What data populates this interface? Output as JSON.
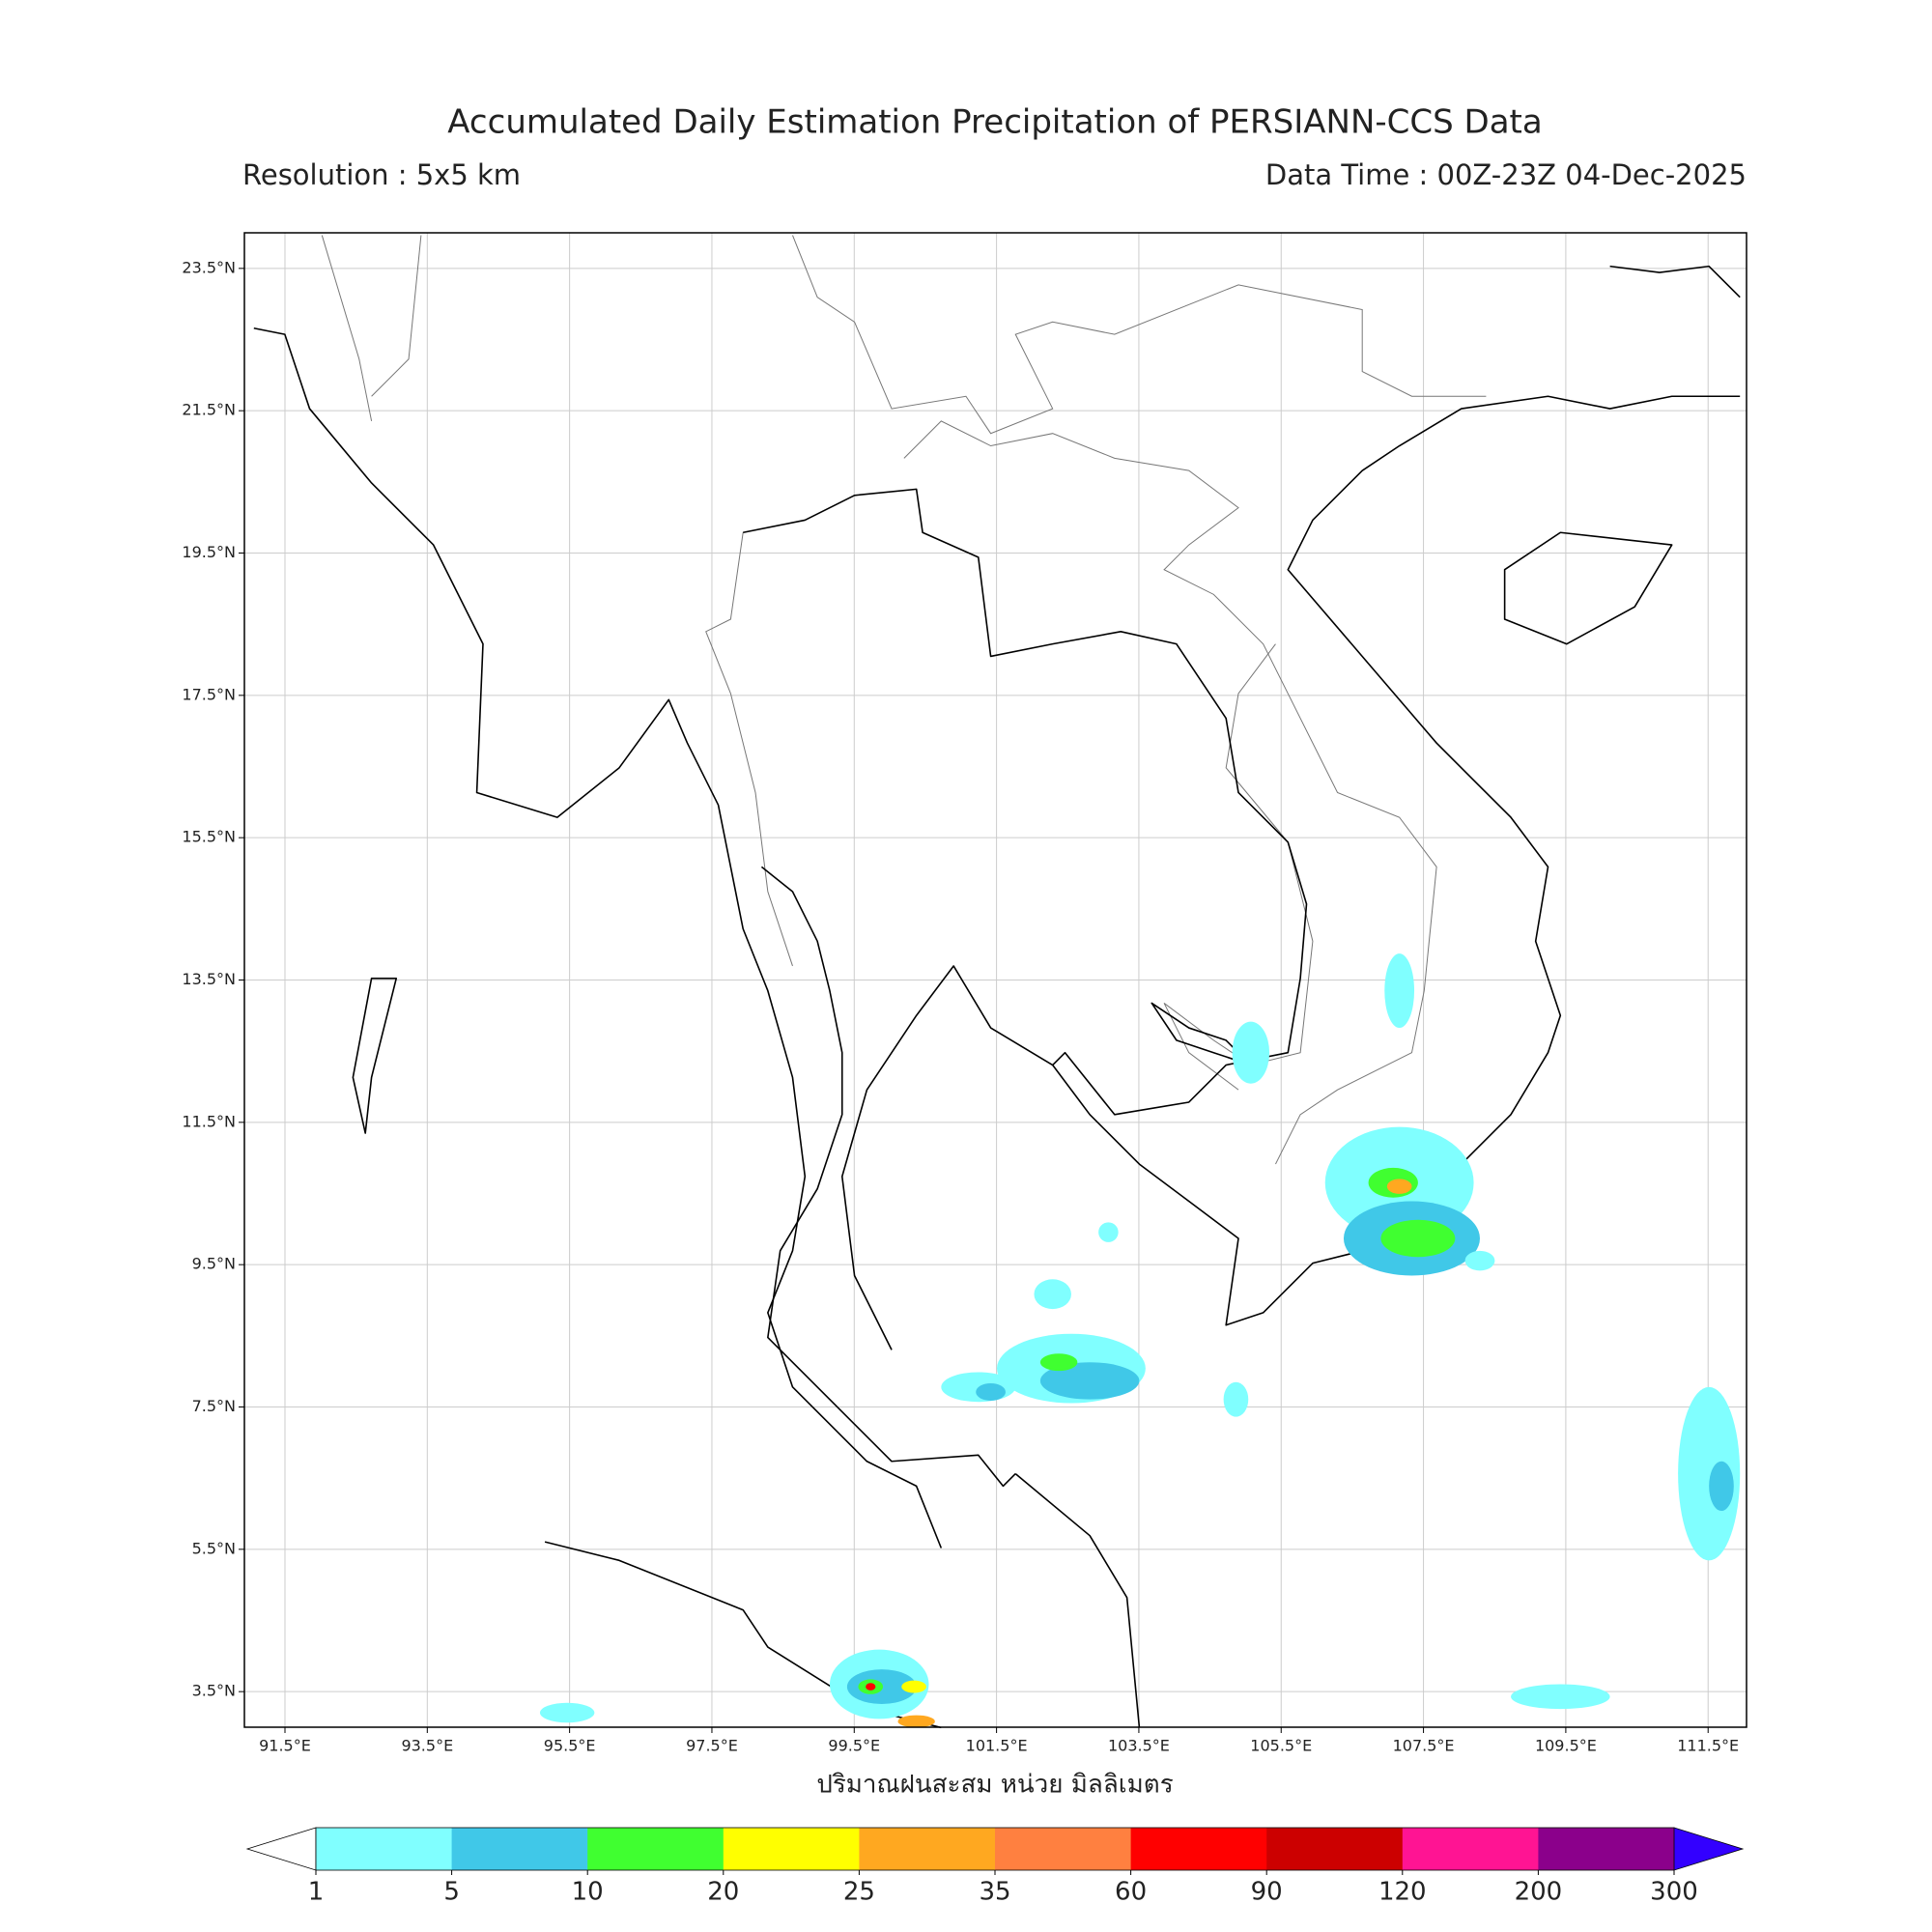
{
  "title": "Accumulated Daily Estimation Precipitation of PERSIANN-CCS Data",
  "resolution": "Resolution : 5x5 km",
  "data_time": "Data Time : 00Z-23Z 04-Dec-2025",
  "map": {
    "lon_range": [
      90.93,
      112.04
    ],
    "lat_range": [
      3.0,
      24.0
    ],
    "grid": true,
    "lon_ticks": [
      {
        "value": 91.5,
        "label": "91.5°E"
      },
      {
        "value": 93.5,
        "label": "93.5°E"
      },
      {
        "value": 95.5,
        "label": "95.5°E"
      },
      {
        "value": 97.5,
        "label": "97.5°E"
      },
      {
        "value": 99.5,
        "label": "99.5°E"
      },
      {
        "value": 101.5,
        "label": "101.5°E"
      },
      {
        "value": 103.5,
        "label": "103.5°E"
      },
      {
        "value": 105.5,
        "label": "105.5°E"
      },
      {
        "value": 107.5,
        "label": "107.5°E"
      },
      {
        "value": 109.5,
        "label": "109.5°E"
      },
      {
        "value": 111.5,
        "label": "111.5°E"
      }
    ],
    "lat_ticks": [
      {
        "value": 23.5,
        "label": "23.5°N"
      },
      {
        "value": 21.5,
        "label": "21.5°N"
      },
      {
        "value": 19.5,
        "label": "19.5°N"
      },
      {
        "value": 17.5,
        "label": "17.5°N"
      },
      {
        "value": 15.5,
        "label": "15.5°N"
      },
      {
        "value": 13.5,
        "label": "13.5°N"
      },
      {
        "value": 11.5,
        "label": "11.5°N"
      },
      {
        "value": 9.5,
        "label": "9.5°N"
      },
      {
        "value": 7.5,
        "label": "7.5°N"
      },
      {
        "value": 5.5,
        "label": "5.5°N"
      },
      {
        "value": 3.5,
        "label": "3.5°N"
      }
    ],
    "axis_label": "ปริมาณฝนสะสม หน่วย มิลลิเมตร"
  },
  "colorbar": {
    "levels": [
      1,
      5,
      10,
      20,
      25,
      35,
      60,
      90,
      120,
      200,
      300
    ],
    "colors": [
      "#80ffff",
      "#40c8e8",
      "#40ff30",
      "#ffff00",
      "#ffa820",
      "#ff8040",
      "#ff0000",
      "#cc0000",
      "#ff1493",
      "#8b008b"
    ],
    "under_color": "#ffffff",
    "over_color": "#3300ff"
  }
}
